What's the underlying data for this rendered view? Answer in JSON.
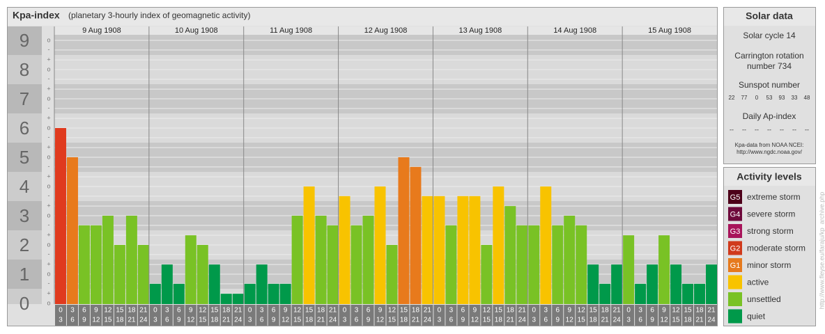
{
  "chart_data": {
    "type": "bar",
    "title": "Kpa-index",
    "subtitle": "(planetary 3-hourly index of geomagnetic activity)",
    "ylim": [
      0,
      9.5
    ],
    "yticks": [
      0,
      1,
      2,
      3,
      4,
      5,
      6,
      7,
      8,
      9
    ],
    "minor_ticks": [
      {
        "value": 0,
        "label": "o"
      },
      {
        "value": 0.33,
        "label": "+"
      },
      {
        "value": 0.67,
        "label": "-"
      },
      {
        "value": 1,
        "label": "o"
      },
      {
        "value": 1.33,
        "label": "+"
      },
      {
        "value": 1.67,
        "label": "-"
      },
      {
        "value": 2,
        "label": "o"
      },
      {
        "value": 2.33,
        "label": "+"
      },
      {
        "value": 2.67,
        "label": "-"
      },
      {
        "value": 3,
        "label": "o"
      },
      {
        "value": 3.33,
        "label": "+"
      },
      {
        "value": 3.67,
        "label": "-"
      },
      {
        "value": 4,
        "label": "o"
      },
      {
        "value": 4.33,
        "label": "+"
      },
      {
        "value": 4.67,
        "label": "-"
      },
      {
        "value": 5,
        "label": "o"
      },
      {
        "value": 5.33,
        "label": "+"
      },
      {
        "value": 5.67,
        "label": "-"
      },
      {
        "value": 6,
        "label": "o"
      },
      {
        "value": 6.33,
        "label": "+"
      },
      {
        "value": 6.67,
        "label": "-"
      },
      {
        "value": 7,
        "label": "o"
      },
      {
        "value": 7.33,
        "label": "+"
      },
      {
        "value": 7.67,
        "label": "-"
      },
      {
        "value": 8,
        "label": "o"
      },
      {
        "value": 8.33,
        "label": "+"
      },
      {
        "value": 8.67,
        "label": "-"
      },
      {
        "value": 9,
        "label": "o"
      }
    ],
    "grid": true,
    "hour_labels": [
      [
        "0",
        "3"
      ],
      [
        "3",
        "6"
      ],
      [
        "6",
        "9"
      ],
      [
        "9",
        "12"
      ],
      [
        "12",
        "15"
      ],
      [
        "15",
        "18"
      ],
      [
        "18",
        "21"
      ],
      [
        "21",
        "24"
      ]
    ],
    "days": [
      {
        "date": "9 Aug 1908",
        "values": [
          6,
          5,
          2.67,
          2.67,
          3,
          2,
          3,
          2
        ],
        "colors": [
          "#e03a1e",
          "#e87a1c",
          "#79c225",
          "#79c225",
          "#79c225",
          "#79c225",
          "#79c225",
          "#79c225"
        ]
      },
      {
        "date": "10 Aug 1908",
        "values": [
          0.67,
          1.33,
          0.67,
          2.33,
          2,
          1.33,
          0.33,
          0.33
        ],
        "colors": [
          "#00994a",
          "#00994a",
          "#00994a",
          "#79c225",
          "#79c225",
          "#00994a",
          "#00994a",
          "#00994a"
        ]
      },
      {
        "date": "11 Aug 1908",
        "values": [
          0.67,
          1.33,
          0.67,
          0.67,
          3,
          4,
          3,
          2.67
        ],
        "colors": [
          "#00994a",
          "#00994a",
          "#00994a",
          "#00994a",
          "#79c225",
          "#f8c300",
          "#79c225",
          "#79c225"
        ]
      },
      {
        "date": "12 Aug 1908",
        "values": [
          3.67,
          2.67,
          3,
          4,
          2,
          5,
          4.67,
          3.67
        ],
        "colors": [
          "#f8c300",
          "#79c225",
          "#79c225",
          "#f8c300",
          "#79c225",
          "#e87a1c",
          "#e87a1c",
          "#f8c300"
        ]
      },
      {
        "date": "13 Aug 1908",
        "values": [
          3.67,
          2.67,
          3.67,
          3.67,
          2,
          4,
          3.33,
          2.67
        ],
        "colors": [
          "#f8c300",
          "#79c225",
          "#f8c300",
          "#f8c300",
          "#79c225",
          "#f8c300",
          "#79c225",
          "#79c225"
        ]
      },
      {
        "date": "14 Aug 1908",
        "values": [
          2.67,
          4,
          2.67,
          3,
          2.67,
          1.33,
          0.67,
          1.33
        ],
        "colors": [
          "#79c225",
          "#f8c300",
          "#79c225",
          "#79c225",
          "#79c225",
          "#00994a",
          "#00994a",
          "#00994a"
        ]
      },
      {
        "date": "15 Aug 1908",
        "values": [
          2.33,
          0.67,
          1.33,
          2.33,
          1.33,
          0.67,
          0.67,
          1.33
        ],
        "colors": [
          "#79c225",
          "#00994a",
          "#00994a",
          "#79c225",
          "#00994a",
          "#00994a",
          "#00994a",
          "#00994a"
        ]
      }
    ]
  },
  "solar_data": {
    "title": "Solar data",
    "solar_cycle": "Solar cycle 14",
    "carrington": [
      "Carrington rotation",
      "number 734"
    ],
    "sunspot_title": "Sunspot number",
    "sunspot_numbers": [
      22,
      77,
      0,
      53,
      93,
      33,
      48
    ],
    "ap_title": "Daily Ap-index",
    "ap_values": [
      "--",
      "--",
      "--",
      "--",
      "--",
      "--",
      "--"
    ],
    "source": [
      "Kpa-data from NOAA NCEI:",
      "http://www.ngdc.noaa.gov/"
    ]
  },
  "activity_levels": {
    "title": "Activity levels",
    "items": [
      {
        "badge": "G5",
        "label": "extreme storm",
        "color": "#4d0019"
      },
      {
        "badge": "G4",
        "label": "severe storm",
        "color": "#6e0a3c"
      },
      {
        "badge": "G3",
        "label": "strong storm",
        "color": "#a8145a"
      },
      {
        "badge": "G2",
        "label": "moderate storm",
        "color": "#d03a1c"
      },
      {
        "badge": "G1",
        "label": "minor storm",
        "color": "#e67a1e"
      },
      {
        "badge": null,
        "label": "active",
        "color": "#f8c300"
      },
      {
        "badge": null,
        "label": "unsettled",
        "color": "#79c225"
      },
      {
        "badge": null,
        "label": "quiet",
        "color": "#00994a"
      }
    ]
  },
  "source_url": "http://www.fleyse.eu/faraju/kp_archive.php"
}
